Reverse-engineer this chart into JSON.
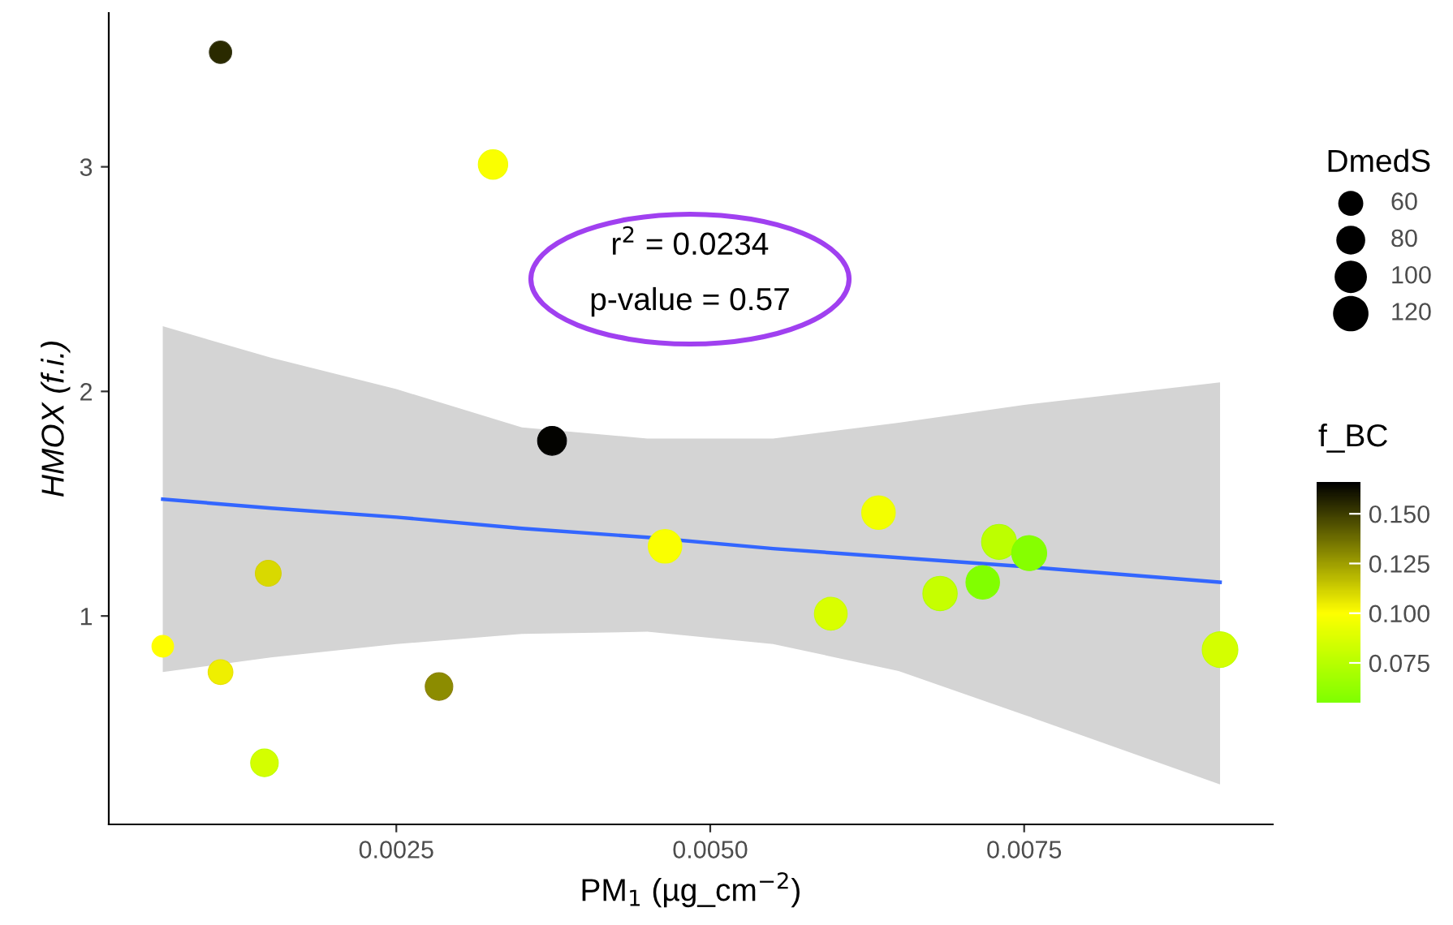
{
  "chart_data": {
    "type": "bubble",
    "xlabel": "PM$_{1}$ (µg_cm$^{−2}$)",
    "ylabel": "HMOX (f.i.)",
    "legend_title": "DmedS",
    "clabel": "f_BC",
    "annotations": [
      "r$^{2}$ = 0.0234",
      "p-value = 0.57"
    ],
    "xlim": [
      0.00021,
      0.00948
    ],
    "xticks": [
      {
        "value": 0.0025,
        "label": "0.0025"
      },
      {
        "value": 0.005,
        "label": "0.0050"
      },
      {
        "value": 0.0075,
        "label": "0.0075"
      }
    ],
    "ylim": [
      0.072,
      3.685
    ],
    "yticks": [
      1,
      2,
      3
    ],
    "clim": [
      0.055,
      0.166
    ],
    "cticks": [
      {
        "value": 0.075,
        "label": "0.075"
      },
      {
        "value": 0.1,
        "label": "0.100"
      },
      {
        "value": 0.125,
        "label": "0.125"
      },
      {
        "value": 0.15,
        "label": "0.150"
      }
    ],
    "size_legend": [
      60,
      80,
      100,
      120
    ],
    "grid": false,
    "series": [
      {
        "colors": [
          "#3a3a1a",
          "#eeff00",
          "#000000",
          "#f0ff00",
          "#d4d000",
          "#ffff00",
          "#e8e000",
          "#8b8010",
          "#c0ff00",
          "#e8ff00",
          "#c8ff00",
          "#b0ff00",
          "#80ff00",
          "#a8ff00",
          "#80ff00",
          "#c0ff00"
        ],
        "x": [
          0.0011,
          0.00327,
          0.00374,
          0.00464,
          0.00148,
          0.00064,
          0.0011,
          0.00284,
          0.00145,
          0.00634,
          0.00596,
          0.00683,
          0.00717,
          0.0073,
          0.00754,
          0.00906
        ],
        "values": [
          3.51,
          3.01,
          1.78,
          1.31,
          1.19,
          0.865,
          0.75,
          0.686,
          0.346,
          1.46,
          1.01,
          1.1,
          1.15,
          1.33,
          1.28,
          0.85
        ],
        "sizes": [
          48,
          83,
          80,
          108,
          64,
          45,
          59,
          73,
          73,
          108,
          103,
          113,
          108,
          117,
          117,
          122
        ],
        "cvalues": [
          0.155,
          0.098,
          0.165,
          0.098,
          0.11,
          0.1,
          0.104,
          0.13,
          0.085,
          0.096,
          0.087,
          0.08,
          0.056,
          0.077,
          0.058,
          0.085
        ]
      },
      {
        "type": "line",
        "color": "#3366ff",
        "x": [
          0.00064,
          0.0015,
          0.0025,
          0.0035,
          0.0045,
          0.0055,
          0.0065,
          0.0075,
          0.00906
        ],
        "values": [
          1.52,
          1.48,
          1.44,
          1.39,
          1.35,
          1.3,
          1.26,
          1.22,
          1.15
        ],
        "lower": [
          0.75,
          0.815,
          0.875,
          0.92,
          0.93,
          0.875,
          0.755,
          0.56,
          0.25
        ],
        "upper": [
          2.29,
          2.15,
          2.01,
          1.84,
          1.79,
          1.79,
          1.86,
          1.94,
          2.04
        ]
      }
    ]
  }
}
